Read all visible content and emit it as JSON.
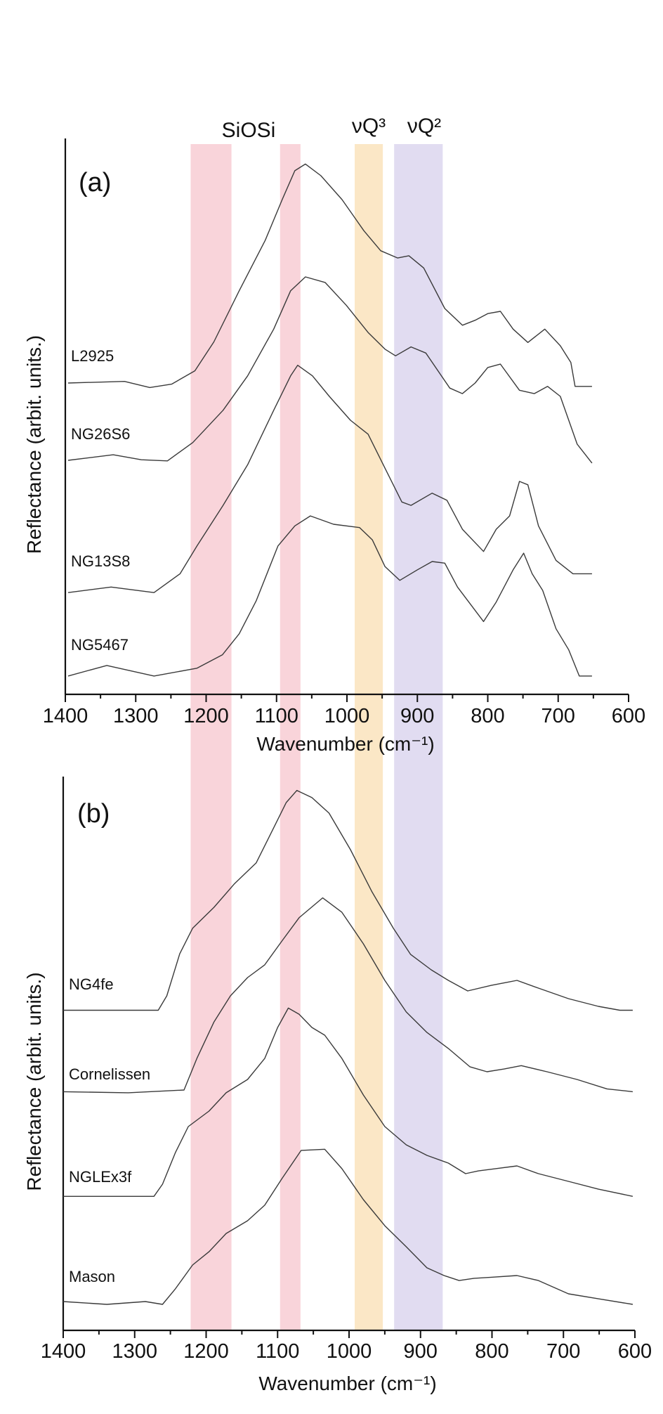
{
  "bands": {
    "label_siosi": "SiOSi",
    "label_q3": "νQ³",
    "label_q2": "νQ²",
    "ranges": [
      {
        "group": "SiOSi",
        "from": 1222,
        "to": 1164,
        "color": "#f9d4da"
      },
      {
        "group": "SiOSi",
        "from": 1095,
        "to": 1066,
        "color": "#f9d4da"
      },
      {
        "group": "νQ³",
        "from": 989,
        "to": 949,
        "color": "#fbe7c6"
      },
      {
        "group": "νQ²",
        "from": 933,
        "to": 864,
        "color": "#e1dcf1"
      }
    ]
  },
  "chart_data": [
    {
      "type": "line",
      "panel_label": "(a)",
      "xlabel": "Wavenumber (cm⁻¹)",
      "ylabel": "Reflectance (arbit. units.)",
      "xlim": [
        1400,
        600
      ],
      "x_reversed": true,
      "ylim": [
        0,
        100
      ],
      "grid": false,
      "xticks": [
        "1400",
        "1300",
        "1200",
        "1100",
        "1000",
        "900",
        "800",
        "700",
        "600"
      ],
      "line_color": "#3a3a3a",
      "series": [
        {
          "name": "L2925",
          "x": [
            1396,
            1316,
            1280,
            1249,
            1216,
            1189,
            1153,
            1116,
            1092,
            1074,
            1059,
            1037,
            1007,
            976,
            952,
            928,
            912,
            891,
            861,
            836,
            818,
            800,
            782,
            764,
            743,
            719,
            697,
            682,
            676,
            652
          ],
          "y": [
            56.0,
            56.3,
            55.2,
            55.8,
            58.2,
            63.4,
            72.6,
            81.7,
            89.0,
            94.2,
            95.4,
            93.3,
            89.0,
            83.4,
            79.8,
            78.5,
            78.9,
            76.7,
            69.4,
            66.4,
            67.3,
            68.5,
            68.9,
            65.7,
            63.3,
            65.7,
            62.7,
            59.7,
            55.4,
            55.4
          ]
        },
        {
          "name": "NG26S6",
          "x": [
            1396,
            1332,
            1292,
            1255,
            1219,
            1176,
            1141,
            1104,
            1080,
            1059,
            1031,
            1001,
            970,
            946,
            931,
            909,
            888,
            854,
            836,
            818,
            800,
            782,
            755,
            734,
            715,
            697,
            673,
            652
          ],
          "y": [
            42.1,
            43.1,
            42.2,
            42.0,
            45.3,
            51.1,
            57.3,
            65.7,
            72.6,
            75.1,
            74.1,
            70.0,
            65.1,
            62.1,
            60.9,
            62.5,
            61.4,
            55.1,
            54.1,
            56.0,
            58.8,
            59.4,
            54.7,
            54.1,
            55.4,
            53.6,
            45.0,
            41.6
          ]
        },
        {
          "name": "NG13S8",
          "x": [
            1396,
            1335,
            1274,
            1237,
            1213,
            1176,
            1141,
            1104,
            1080,
            1070,
            1049,
            1025,
            995,
            970,
            946,
            922,
            909,
            879,
            858,
            836,
            806,
            788,
            769,
            755,
            743,
            728,
            703,
            679,
            652
          ],
          "y": [
            18.3,
            19.3,
            18.3,
            21.7,
            26.7,
            34.0,
            41.3,
            51.1,
            57.3,
            59.2,
            57.3,
            53.6,
            49.3,
            46.8,
            40.7,
            34.6,
            34.0,
            36.2,
            34.9,
            29.7,
            25.7,
            29.7,
            32.1,
            38.3,
            37.7,
            30.3,
            24.1,
            21.7,
            21.7
          ]
        },
        {
          "name": "NG5467",
          "x": [
            1396,
            1341,
            1274,
            1213,
            1177,
            1153,
            1129,
            1098,
            1074,
            1052,
            1019,
            982,
            964,
            946,
            925,
            900,
            879,
            861,
            843,
            806,
            788,
            764,
            749,
            737,
            722,
            703,
            685,
            670,
            652
          ],
          "y": [
            3.3,
            5.2,
            3.3,
            4.7,
            7.1,
            10.9,
            16.8,
            26.7,
            30.3,
            32.1,
            30.6,
            30.0,
            27.8,
            23.0,
            20.5,
            22.4,
            23.9,
            23.6,
            19.3,
            13.1,
            16.6,
            22.4,
            25.4,
            21.7,
            18.7,
            11.8,
            8.0,
            3.3,
            3.3
          ]
        }
      ]
    },
    {
      "type": "line",
      "panel_label": "(b)",
      "xlabel": "Wavenumber (cm⁻¹)",
      "ylabel": "Reflectance (arbit. units.)",
      "xlim": [
        1400,
        600
      ],
      "x_reversed": true,
      "ylim": [
        0,
        100
      ],
      "grid": false,
      "xticks": [
        "1400",
        "1300",
        "1200",
        "1100",
        "1000",
        "900",
        "800",
        "700",
        "600"
      ],
      "line_color": "#3a3a3a",
      "series": [
        {
          "name": "NG4fe",
          "x": [
            1400,
            1267,
            1255,
            1237,
            1219,
            1189,
            1160,
            1130,
            1106,
            1088,
            1073,
            1052,
            1028,
            998,
            968,
            938,
            914,
            885,
            861,
            834,
            801,
            765,
            735,
            693,
            651,
            621,
            603
          ],
          "y": [
            57.8,
            57.8,
            60.4,
            68.0,
            72.6,
            76.4,
            80.7,
            84.4,
            90.6,
            95.3,
            97.5,
            96.2,
            93.4,
            86.8,
            79.2,
            72.6,
            67.9,
            65.1,
            63.2,
            61.3,
            62.3,
            63.2,
            61.8,
            59.9,
            58.5,
            57.8,
            57.8
          ]
        },
        {
          "name": "Cornelissen",
          "x": [
            1400,
            1309,
            1231,
            1213,
            1189,
            1166,
            1142,
            1118,
            1094,
            1070,
            1037,
            1010,
            980,
            950,
            920,
            891,
            861,
            831,
            807,
            783,
            759,
            723,
            681,
            639,
            603
          ],
          "y": [
            43.1,
            42.9,
            43.4,
            49.1,
            55.7,
            60.4,
            63.7,
            66.0,
            70.3,
            74.5,
            78.1,
            75.5,
            69.8,
            63.2,
            57.5,
            53.8,
            50.9,
            47.6,
            46.7,
            47.2,
            47.8,
            46.7,
            45.3,
            43.6,
            43.1
          ]
        },
        {
          "name": "NGLEx3f",
          "x": [
            1400,
            1339,
            1273,
            1261,
            1243,
            1225,
            1196,
            1172,
            1142,
            1118,
            1100,
            1085,
            1070,
            1052,
            1034,
            1010,
            980,
            950,
            920,
            891,
            861,
            837,
            819,
            795,
            765,
            735,
            693,
            651,
            603
          ],
          "y": [
            24.2,
            24.2,
            24.2,
            26.4,
            32.1,
            36.8,
            39.6,
            42.9,
            45.3,
            49.1,
            54.7,
            58.2,
            57.1,
            54.7,
            53.3,
            49.1,
            42.5,
            36.8,
            33.5,
            31.6,
            30.2,
            28.3,
            28.8,
            29.2,
            29.7,
            28.3,
            26.9,
            25.5,
            24.2
          ]
        },
        {
          "name": "Mason",
          "x": [
            1400,
            1339,
            1285,
            1261,
            1243,
            1219,
            1196,
            1172,
            1142,
            1118,
            1094,
            1067,
            1034,
            1010,
            980,
            950,
            920,
            891,
            867,
            846,
            825,
            801,
            765,
            735,
            693,
            651,
            603
          ],
          "y": [
            5.2,
            4.7,
            5.2,
            4.7,
            7.5,
            11.8,
            14.2,
            17.5,
            19.8,
            22.6,
            27.4,
            32.5,
            32.7,
            29.2,
            23.6,
            18.9,
            15.1,
            11.3,
            9.9,
            9.0,
            9.4,
            9.6,
            9.9,
            9.0,
            6.6,
            5.7,
            4.7
          ]
        }
      ]
    }
  ]
}
